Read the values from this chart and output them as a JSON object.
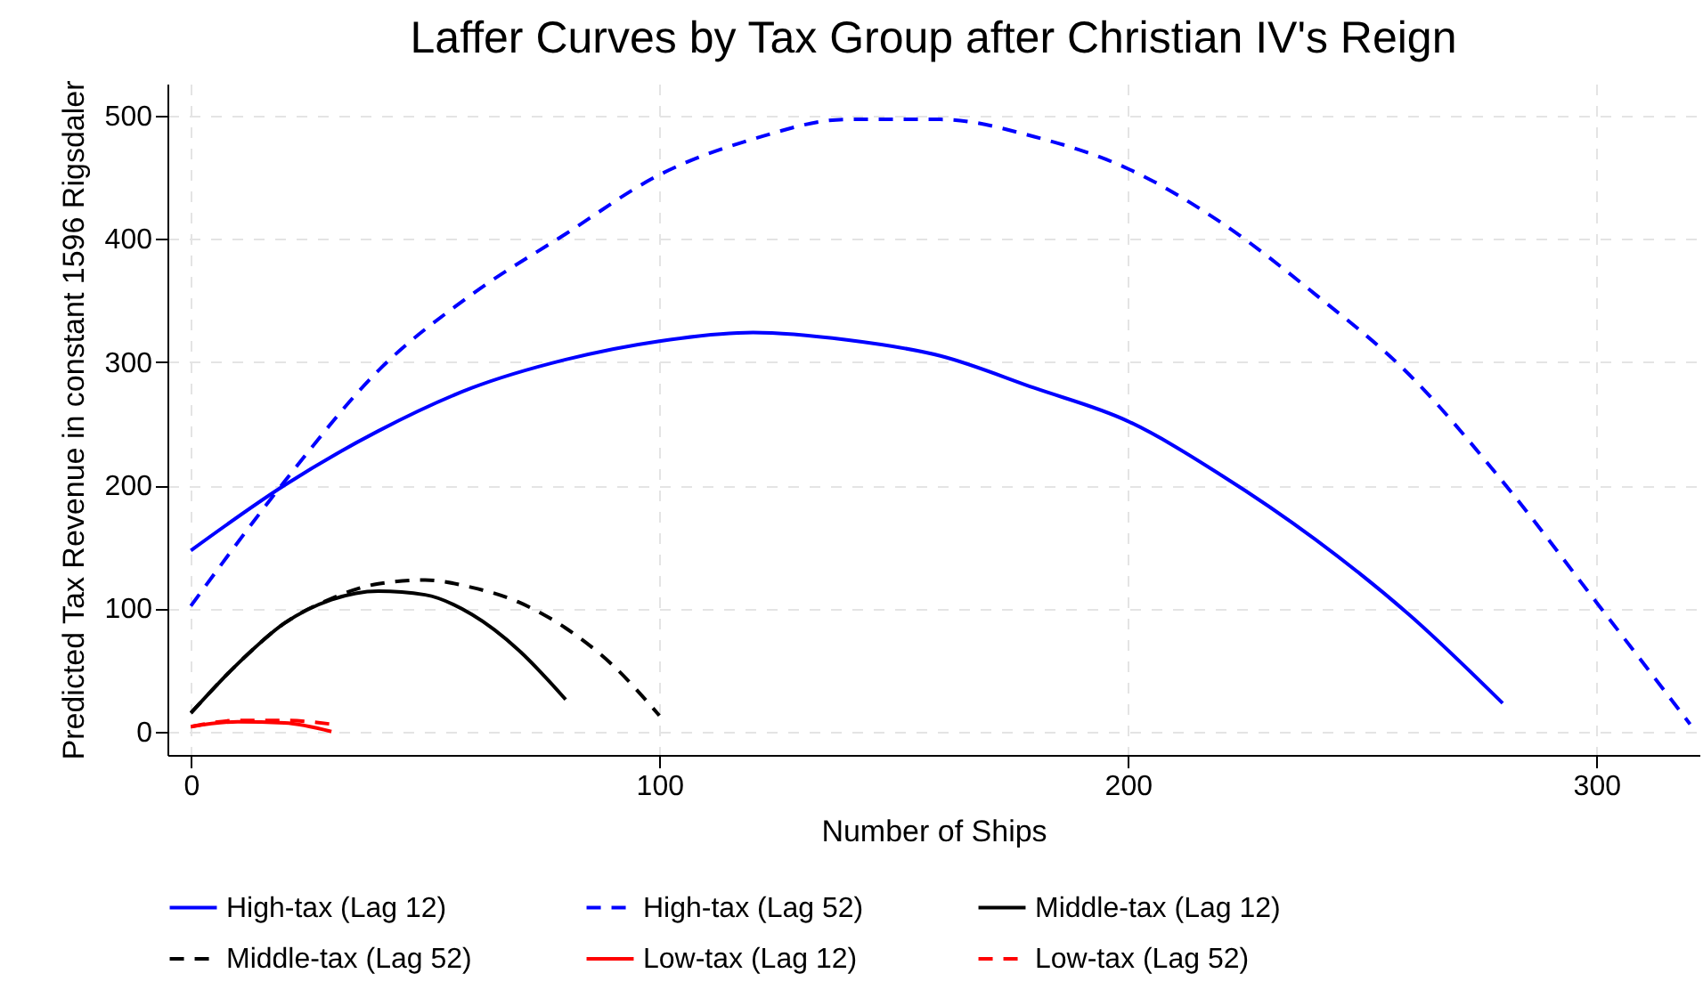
{
  "chart_data": {
    "type": "line",
    "title": "Laffer Curves by Tax Group after Christian IV's Reign",
    "xlabel": "Number of Ships",
    "ylabel": "Predicted Tax Revenue in constant 1596 Rigsdaler",
    "xlim": [
      -5,
      322
    ],
    "ylim": [
      -19,
      526
    ],
    "xticks": [
      0,
      100,
      200,
      300
    ],
    "yticks": [
      0,
      100,
      200,
      300,
      400,
      500
    ],
    "grid": true,
    "legend": "bottom",
    "series": [
      {
        "name": "High-tax (Lag 12)",
        "color": "#0000ff",
        "line_style": "solid",
        "x": [
          0,
          20,
          40,
          60,
          80,
          100,
          120,
          140,
          160,
          180,
          200,
          220,
          240,
          260,
          280
        ],
        "values": [
          147,
          200,
          244,
          279,
          302,
          317,
          324,
          318,
          305,
          279,
          252,
          208,
          156,
          95,
          23
        ]
      },
      {
        "name": "High-tax (Lag 52)",
        "color": "#0000ff",
        "line_style": "dashed",
        "x": [
          0,
          20,
          40,
          60,
          80,
          100,
          120,
          140,
          160,
          180,
          200,
          220,
          240,
          260,
          280,
          300,
          320
        ],
        "values": [
          102,
          203,
          293,
          355,
          404,
          452,
          481,
          497,
          497,
          483,
          457,
          413,
          355,
          290,
          203,
          105,
          6
        ]
      },
      {
        "name": "Middle-tax (Lag 12)",
        "color": "#000000",
        "line_style": "solid",
        "x": [
          0,
          10,
          20,
          30,
          40,
          50,
          60,
          70,
          80
        ],
        "values": [
          15,
          55,
          88,
          107,
          114,
          111,
          95,
          66,
          26
        ]
      },
      {
        "name": "Middle-tax (Lag 52)",
        "color": "#000000",
        "line_style": "dashed",
        "x": [
          0,
          10,
          20,
          30,
          40,
          50,
          60,
          70,
          80,
          90,
          100
        ],
        "values": [
          15,
          55,
          88,
          108,
          120,
          123,
          117,
          105,
          84,
          54,
          13
        ]
      },
      {
        "name": "Low-tax (Lag 12)",
        "color": "#ff0000",
        "line_style": "solid",
        "x": [
          0,
          10,
          20,
          30
        ],
        "values": [
          4,
          8,
          7,
          0
        ]
      },
      {
        "name": "Low-tax (Lag 52)",
        "color": "#ff0000",
        "line_style": "dashed",
        "x": [
          0,
          10,
          20,
          30
        ],
        "values": [
          4,
          9,
          9,
          6
        ]
      }
    ]
  }
}
